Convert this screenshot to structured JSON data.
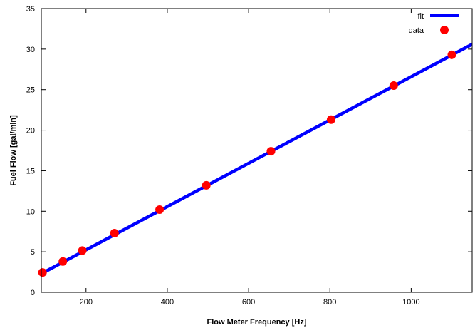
{
  "chart_data": {
    "type": "line",
    "xlabel": "Flow Meter Frequency [Hz]",
    "ylabel": "Fuel Flow [gal/min]",
    "xlim": [
      90,
      1150
    ],
    "ylim": [
      0,
      35
    ],
    "xticks": [
      200,
      400,
      600,
      800,
      1000
    ],
    "yticks": [
      0,
      5,
      10,
      15,
      20,
      25,
      30,
      35
    ],
    "grid": false,
    "legend_position": "top-right",
    "series": [
      {
        "name": "fit",
        "kind": "line",
        "color": "#0000ff",
        "x": [
          90,
          1150
        ],
        "y": [
          2.3,
          30.6
        ]
      },
      {
        "name": "data",
        "kind": "scatter",
        "color": "#ff0000",
        "x": [
          93,
          143,
          191,
          270,
          381,
          496,
          655,
          803,
          957,
          1100
        ],
        "y": [
          2.45,
          3.8,
          5.15,
          7.3,
          10.2,
          13.2,
          17.4,
          21.3,
          25.5,
          29.3
        ]
      }
    ]
  }
}
